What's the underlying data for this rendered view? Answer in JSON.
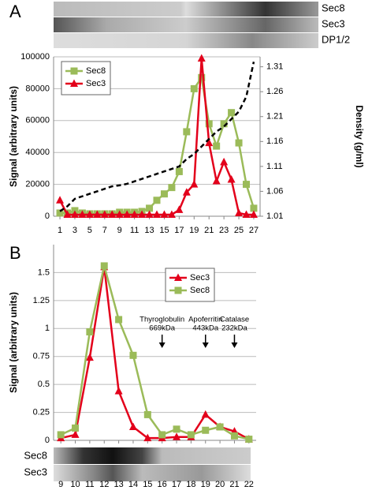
{
  "chart_data": [
    {
      "type": "line",
      "panel_label": "A",
      "ylabel": "Signal (arbitrary units)",
      "y2label": "Density (g/ml)",
      "blots": [
        "Sec8",
        "Sec3",
        "DP1/2"
      ],
      "x": [
        1,
        2,
        3,
        4,
        5,
        6,
        7,
        8,
        9,
        10,
        11,
        12,
        13,
        14,
        15,
        16,
        17,
        18,
        19,
        20,
        21,
        22,
        23,
        24,
        25,
        26,
        27
      ],
      "xlim": [
        0.15,
        27.85
      ],
      "xticks": [
        1,
        3,
        5,
        7,
        9,
        11,
        13,
        15,
        17,
        19,
        21,
        23,
        25,
        27
      ],
      "ylim": [
        0,
        100000
      ],
      "yticks": [
        0,
        20000,
        40000,
        60000,
        80000,
        100000
      ],
      "y2lim": [
        1.01,
        1.33
      ],
      "y2ticks": [
        1.01,
        1.06,
        1.11,
        1.16,
        1.21,
        1.26,
        1.31
      ],
      "grid": true,
      "legend": "upper left",
      "series": [
        {
          "name": "Sec8",
          "color": "#9bbb59",
          "marker": "square",
          "values": [
            2000,
            2000,
            3500,
            2000,
            1500,
            1500,
            1500,
            1500,
            2500,
            2500,
            2500,
            3000,
            5000,
            10000,
            14000,
            18000,
            28000,
            53000,
            80000,
            87000,
            58000,
            44000,
            58000,
            65000,
            46000,
            20000,
            5000
          ]
        },
        {
          "name": "Sec3",
          "color": "#e3001b",
          "marker": "triangle",
          "values": [
            10000,
            1000,
            1000,
            1000,
            1000,
            1000,
            1000,
            1000,
            1000,
            1000,
            1000,
            1000,
            1000,
            1000,
            1000,
            1000,
            4000,
            15000,
            20000,
            99000,
            46000,
            22000,
            34000,
            23000,
            2000,
            1000,
            1000
          ]
        },
        {
          "color": "#000000",
          "marker": "none",
          "dash": true,
          "axis": "y2",
          "values": [
            1.02,
            1.03,
            1.045,
            1.05,
            1.055,
            1.06,
            1.065,
            1.07,
            1.072,
            1.075,
            1.08,
            1.085,
            1.09,
            1.095,
            1.1,
            1.105,
            1.11,
            1.125,
            1.135,
            1.15,
            1.165,
            1.18,
            1.19,
            1.205,
            1.22,
            1.25,
            1.32
          ]
        }
      ]
    },
    {
      "type": "line",
      "panel_label": "B",
      "ylabel": "Signal (arbitrary units)",
      "blots": [
        "Sec8",
        "Sec3"
      ],
      "x": [
        9,
        10,
        11,
        12,
        13,
        14,
        15,
        16,
        17,
        18,
        19,
        20,
        21,
        22
      ],
      "xlim": [
        8.5,
        22.5
      ],
      "xticks": [
        9,
        10,
        11,
        12,
        13,
        14,
        15,
        16,
        17,
        18,
        19,
        20,
        21,
        22
      ],
      "ylim": [
        0,
        1.75
      ],
      "yticks": [
        0,
        0.25,
        0.5,
        0.75,
        1,
        1.25,
        1.5
      ],
      "grid": true,
      "legend": "upper right",
      "annotations": [
        {
          "x": 16,
          "lines": [
            "Thyroglobulin",
            "669kDa"
          ]
        },
        {
          "x": 19,
          "lines": [
            "Apoferritin",
            "443kDa"
          ]
        },
        {
          "x": 21,
          "lines": [
            "Catalase",
            "232kDa"
          ]
        }
      ],
      "series": [
        {
          "name": "Sec3",
          "color": "#e3001b",
          "marker": "triangle",
          "values": [
            0.02,
            0.05,
            0.74,
            1.55,
            0.44,
            0.12,
            0.02,
            0.02,
            0.03,
            0.03,
            0.23,
            0.12,
            0.08,
            0.01
          ]
        },
        {
          "name": "Sec8",
          "color": "#9bbb59",
          "marker": "square",
          "values": [
            0.05,
            0.11,
            0.97,
            1.56,
            1.08,
            0.76,
            0.23,
            0.05,
            0.1,
            0.05,
            0.09,
            0.12,
            0.04,
            0.01
          ]
        }
      ]
    }
  ]
}
